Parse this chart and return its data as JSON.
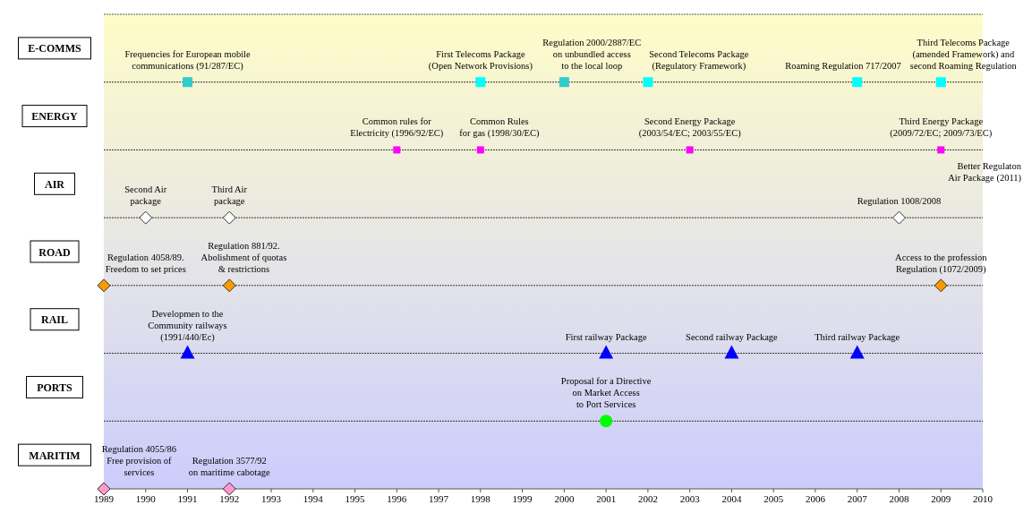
{
  "chart_data": {
    "type": "scatter",
    "orientation": "horizontal",
    "categories": [
      "E-COMMS",
      "ENERGY",
      "AIR",
      "ROAD",
      "RAIL",
      "PORTS",
      "MARITIM"
    ],
    "xlim": [
      1989,
      2010
    ],
    "xticks": [
      1989,
      1990,
      1991,
      1992,
      1993,
      1994,
      1995,
      1996,
      1997,
      1998,
      1999,
      2000,
      2001,
      2002,
      2003,
      2004,
      2005,
      2006,
      2007,
      2008,
      2009,
      2010
    ],
    "grid": "y",
    "series": [
      {
        "marker": "square",
        "colors": [
          "#33cccc",
          "#00ffff",
          "#33cccc",
          "#00ffff",
          "#00ffff",
          "#00ffff"
        ],
        "x": [
          "E-COMMS",
          "E-COMMS",
          "E-COMMS",
          "E-COMMS",
          "E-COMMS",
          "E-COMMS"
        ],
        "values": [
          1991,
          1998,
          2000,
          2002,
          2007,
          2009
        ]
      },
      {
        "marker": "square",
        "color": "#ff00ff",
        "x": [
          "ENERGY",
          "ENERGY",
          "ENERGY",
          "ENERGY"
        ],
        "values": [
          1996,
          1998,
          2003,
          2009
        ]
      },
      {
        "marker": "diamond",
        "color": "#ffffff",
        "x": [
          "AIR",
          "AIR",
          "AIR"
        ],
        "values": [
          1990,
          1992,
          2008
        ]
      },
      {
        "marker": "diamond",
        "color": "#ff9900",
        "x": [
          "ROAD",
          "ROAD",
          "ROAD"
        ],
        "values": [
          1989,
          1992,
          2009
        ]
      },
      {
        "marker": "triangle",
        "color": "#0000ff",
        "x": [
          "RAIL",
          "RAIL",
          "RAIL",
          "RAIL"
        ],
        "values": [
          1991,
          2001,
          2004,
          2007
        ]
      },
      {
        "marker": "circle",
        "color": "#00ff00",
        "x": [
          "PORTS"
        ],
        "values": [
          2001
        ]
      },
      {
        "marker": "diamond",
        "color": "#ff99cc",
        "x": [
          "MARITIM",
          "MARITIM"
        ],
        "values": [
          1989,
          1992
        ]
      }
    ],
    "annotations": [
      {
        "text": "Frequencies for European mobile\ncommunications (91/287/EC)",
        "x": 1991,
        "y": "E-COMMS"
      },
      {
        "text": "First Telecoms Package\n(Open Network Provisions)",
        "x": 1998,
        "y": "E-COMMS"
      },
      {
        "text": "Regulation 2000/2887/EC\non unbundled access\nto the local loop",
        "x": 2000,
        "y": "E-COMMS"
      },
      {
        "text": "Second Telecoms Package\n(Regulatory Framework)",
        "x": 2002,
        "y": "E-COMMS"
      },
      {
        "text": "Roaming Regulation 717/2007",
        "x": 2007,
        "y": "E-COMMS"
      },
      {
        "text": "Third Telecoms Package\n(amended Framework) and\nsecond Roaming Regulation",
        "x": 2009,
        "y": "E-COMMS"
      },
      {
        "text": "Common rules for\nElectricity (1996/92/EC)",
        "x": 1996,
        "y": "ENERGY"
      },
      {
        "text": "Common Rules\nfor gas (1998/30/EC)",
        "x": 1998,
        "y": "ENERGY"
      },
      {
        "text": "Second Energy Package\n(2003/54/EC; 2003/55/EC)",
        "x": 2003,
        "y": "ENERGY"
      },
      {
        "text": "Third Energy Package\n(2009/72/EC; 2009/73/EC)",
        "x": 2009,
        "y": "ENERGY"
      },
      {
        "text": "Second Air\npackage",
        "x": 1990,
        "y": "AIR"
      },
      {
        "text": "Third Air\npackage",
        "x": 1992,
        "y": "AIR"
      },
      {
        "text": "Regulation 1008/2008",
        "x": 2008,
        "y": "AIR"
      },
      "Better Regulaton\nAir Package (2011)",
      {
        "text": "Regulation 4058/89.\nFreedom to set prices",
        "x": 1989,
        "y": "ROAD"
      },
      {
        "text": "Regulation 881/92.\nAbolishment of quotas\n& restrictions",
        "x": 1992,
        "y": "ROAD"
      },
      {
        "text": "Access to the profession\nRegulation (1072/2009)",
        "x": 2009,
        "y": "ROAD"
      },
      {
        "text": "Developmen to the\nCommunity railways\n(1991/440/Ec)",
        "x": 1991,
        "y": "RAIL"
      },
      {
        "text": "First railway Package",
        "x": 2001,
        "y": "RAIL"
      },
      {
        "text": "Second railway Package",
        "x": 2004,
        "y": "RAIL"
      },
      {
        "text": "Third railway Package",
        "x": 2007,
        "y": "RAIL"
      },
      {
        "text": "Proposal for a Directive\non Market Access\nto Port Services",
        "x": 2001,
        "y": "PORTS"
      },
      {
        "text": "Regulation 4055/86\nFree provision of\nservices",
        "x": 1989,
        "y": "MARITIM"
      },
      {
        "text": "Regulation 3577/92\non maritime cabotage",
        "x": 1992,
        "y": "MARITIM"
      }
    ]
  }
}
